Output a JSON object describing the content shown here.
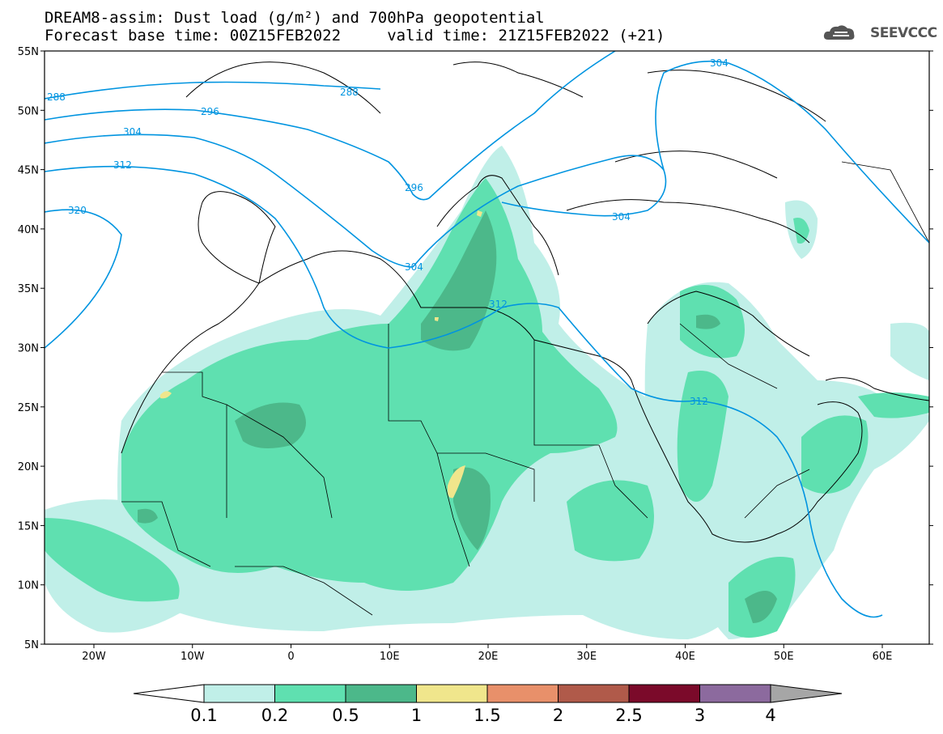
{
  "title_line1": "DREAM8-assim: Dust load (g/m²) and 700hPa geopotential",
  "title_line2": "Forecast base time: 00Z15FEB2022     valid time: 21Z15FEB2022 (+21)",
  "logo_text": "SEEVCCC",
  "lat_labels": [
    "55N",
    "50N",
    "45N",
    "40N",
    "35N",
    "30N",
    "25N",
    "20N",
    "15N",
    "10N",
    "5N"
  ],
  "lon_labels": [
    "20W",
    "10W",
    "0",
    "10E",
    "20E",
    "30E",
    "40E",
    "50E",
    "60E"
  ],
  "colorbar": {
    "labels": [
      "0.1",
      "0.2",
      "0.5",
      "1",
      "1.5",
      "2",
      "2.5",
      "3",
      "4"
    ],
    "colors": [
      "#c0efe8",
      "#5fe0b0",
      "#4cb88a",
      "#f0e68c",
      "#e8906a",
      "#b05a4a",
      "#7b0a2a",
      "#8c6a9e",
      "#a6a6a6"
    ]
  },
  "contour_color": "#0094e0",
  "contour_labels": [
    "288",
    "296",
    "304",
    "312",
    "320",
    "288",
    "296",
    "304",
    "304",
    "312",
    "312",
    "304"
  ]
}
